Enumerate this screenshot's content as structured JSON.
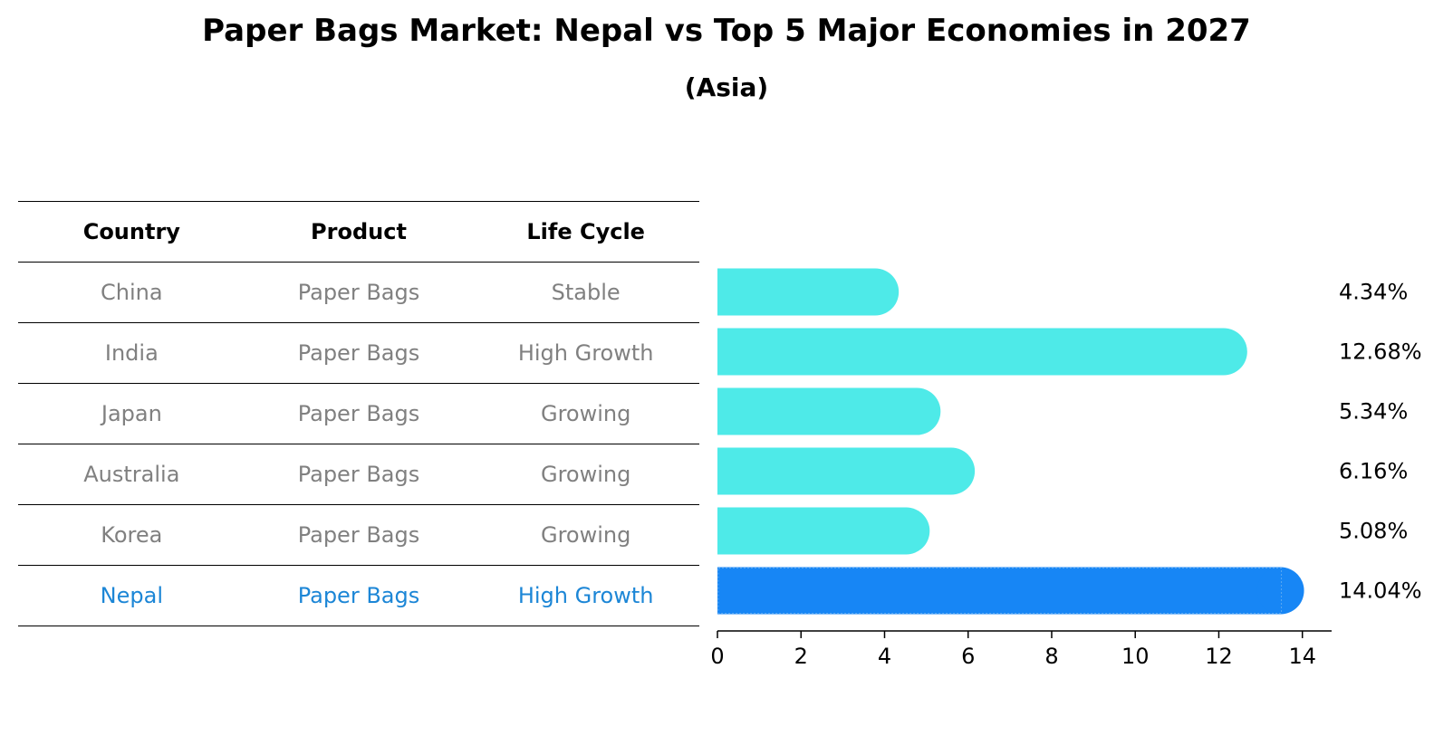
{
  "title": "Paper Bags Market: Nepal vs Top 5 Major Economies in 2027",
  "subtitle": "(Asia)",
  "table": {
    "headers": [
      "Country",
      "Product",
      "Life Cycle"
    ],
    "rows": [
      [
        "China",
        "Paper Bags",
        "Stable"
      ],
      [
        "India",
        "Paper Bags",
        "High Growth"
      ],
      [
        "Japan",
        "Paper Bags",
        "Growing"
      ],
      [
        "Australia",
        "Paper Bags",
        "Growing"
      ],
      [
        "Korea",
        "Paper Bags",
        "Growing"
      ],
      [
        "Nepal",
        "Paper Bags",
        "High Growth"
      ]
    ],
    "highlight_row": 5
  },
  "colors": {
    "bar": "#4eeae8",
    "highlight_bar": "#1786f5",
    "highlight_text": "#1c86d6",
    "muted_text": "#808080"
  },
  "chart_data": {
    "type": "bar",
    "orientation": "horizontal",
    "categories": [
      "China",
      "India",
      "Japan",
      "Australia",
      "Korea",
      "Nepal"
    ],
    "values": [
      4.34,
      12.68,
      5.34,
      6.16,
      5.08,
      14.04
    ],
    "data_labels": [
      "4.34%",
      "12.68%",
      "5.34%",
      "6.16%",
      "5.08%",
      "14.04%"
    ],
    "highlight": "Nepal",
    "xlim": [
      0,
      14.7
    ],
    "xticks": [
      0,
      2,
      4,
      6,
      8,
      10,
      12,
      14
    ],
    "xlabel": "",
    "ylabel": "",
    "grid": false
  }
}
